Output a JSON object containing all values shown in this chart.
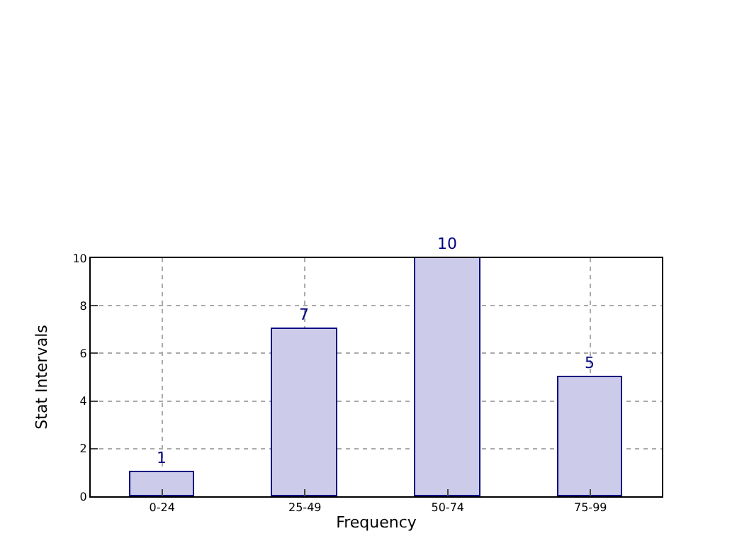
{
  "chart_data": {
    "type": "bar",
    "xlabel": "Frequency",
    "ylabel": "Stat Intervals",
    "categories": [
      "0-24",
      "25-49",
      "50-74",
      "75-99"
    ],
    "values": [
      1,
      7,
      10,
      5
    ],
    "color": "#ccccea",
    "ylim": [
      0,
      10
    ],
    "yticks": [
      0,
      2,
      4,
      6,
      8,
      10
    ],
    "grid": true,
    "data_labels": true
  }
}
